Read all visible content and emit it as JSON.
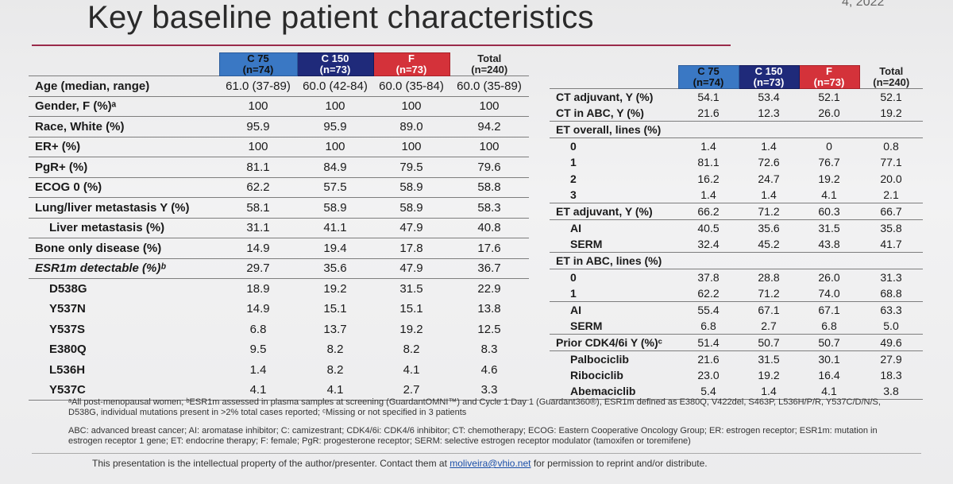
{
  "title": "Key baseline patient characteristics",
  "corner_fragment": "4, 2022",
  "columns": [
    {
      "name": "C 75",
      "n": "(n=74)"
    },
    {
      "name": "C 150",
      "n": "(n=73)"
    },
    {
      "name": "F",
      "n": "(n=73)"
    },
    {
      "name": "Total",
      "n": "(n=240)"
    }
  ],
  "left_rows": [
    {
      "label": "Age (median, range)",
      "values": [
        "61.0 (37-89)",
        "60.0 (42-84)",
        "60.0 (35-84)",
        "60.0 (35-89)"
      ],
      "indent": 0
    },
    {
      "label": "Gender, F (%)ᵃ",
      "values": [
        "100",
        "100",
        "100",
        "100"
      ],
      "indent": 0
    },
    {
      "label": "Race, White (%)",
      "values": [
        "95.9",
        "95.9",
        "89.0",
        "94.2"
      ],
      "indent": 0
    },
    {
      "label": "ER+ (%)",
      "values": [
        "100",
        "100",
        "100",
        "100"
      ],
      "indent": 0
    },
    {
      "label": "PgR+ (%)",
      "values": [
        "81.1",
        "84.9",
        "79.5",
        "79.6"
      ],
      "indent": 0
    },
    {
      "label": "ECOG 0 (%)",
      "values": [
        "62.2",
        "57.5",
        "58.9",
        "58.8"
      ],
      "indent": 0
    },
    {
      "label": "Lung/liver metastasis Y (%)",
      "values": [
        "58.1",
        "58.9",
        "58.9",
        "58.3"
      ],
      "indent": 0
    },
    {
      "label": "Liver metastasis (%)",
      "values": [
        "31.1",
        "41.1",
        "47.9",
        "40.8"
      ],
      "indent": 1
    },
    {
      "label": "Bone only disease (%)",
      "values": [
        "14.9",
        "19.4",
        "17.8",
        "17.6"
      ],
      "indent": 0
    },
    {
      "label": "ESR1m detectable (%)ᵇ",
      "values": [
        "29.7",
        "35.6",
        "47.9",
        "36.7"
      ],
      "indent": 0
    },
    {
      "label": "D538G",
      "values": [
        "18.9",
        "19.2",
        "31.5",
        "22.9"
      ],
      "indent": 1
    },
    {
      "label": "Y537N",
      "values": [
        "14.9",
        "15.1",
        "15.1",
        "13.8"
      ],
      "indent": 1
    },
    {
      "label": "Y537S",
      "values": [
        "6.8",
        "13.7",
        "19.2",
        "12.5"
      ],
      "indent": 1
    },
    {
      "label": "E380Q",
      "values": [
        "9.5",
        "8.2",
        "8.2",
        "8.3"
      ],
      "indent": 1
    },
    {
      "label": "L536H",
      "values": [
        "1.4",
        "8.2",
        "4.1",
        "4.6"
      ],
      "indent": 1
    },
    {
      "label": "Y537C",
      "values": [
        "4.1",
        "4.1",
        "2.7",
        "3.3"
      ],
      "indent": 1
    }
  ],
  "right_rows": [
    {
      "label": "CT adjuvant, Y (%)",
      "values": [
        "54.1",
        "53.4",
        "52.1",
        "52.1"
      ],
      "indent": 0
    },
    {
      "label": "CT in ABC, Y (%)",
      "values": [
        "21.6",
        "12.3",
        "26.0",
        "19.2"
      ],
      "indent": 0
    },
    {
      "label": "ET overall, lines (%)",
      "values": [
        "",
        "",
        "",
        ""
      ],
      "indent": 0
    },
    {
      "label": "0",
      "values": [
        "1.4",
        "1.4",
        "0",
        "0.8"
      ],
      "indent": 1
    },
    {
      "label": "1",
      "values": [
        "81.1",
        "72.6",
        "76.7",
        "77.1"
      ],
      "indent": 1
    },
    {
      "label": "2",
      "values": [
        "16.2",
        "24.7",
        "19.2",
        "20.0"
      ],
      "indent": 1
    },
    {
      "label": "3",
      "values": [
        "1.4",
        "1.4",
        "4.1",
        "2.1"
      ],
      "indent": 1
    },
    {
      "label": "ET adjuvant, Y (%)",
      "values": [
        "66.2",
        "71.2",
        "60.3",
        "66.7"
      ],
      "indent": 0
    },
    {
      "label": "AI",
      "values": [
        "40.5",
        "35.6",
        "31.5",
        "35.8"
      ],
      "indent": 1
    },
    {
      "label": "SERM",
      "values": [
        "32.4",
        "45.2",
        "43.8",
        "41.7"
      ],
      "indent": 1
    },
    {
      "label": "ET in ABC, lines (%)",
      "values": [
        "",
        "",
        "",
        ""
      ],
      "indent": 0
    },
    {
      "label": "0",
      "values": [
        "37.8",
        "28.8",
        "26.0",
        "31.3"
      ],
      "indent": 1
    },
    {
      "label": "1",
      "values": [
        "62.2",
        "71.2",
        "74.0",
        "68.8"
      ],
      "indent": 1
    },
    {
      "label": "AI",
      "values": [
        "55.4",
        "67.1",
        "67.1",
        "63.3"
      ],
      "indent": 1
    },
    {
      "label": "SERM",
      "values": [
        "6.8",
        "2.7",
        "6.8",
        "5.0"
      ],
      "indent": 1
    },
    {
      "label": "Prior CDK4/6i Y (%)ᶜ",
      "values": [
        "51.4",
        "50.7",
        "50.7",
        "49.6"
      ],
      "indent": 0
    },
    {
      "label": "Palbociclib",
      "values": [
        "21.6",
        "31.5",
        "30.1",
        "27.9"
      ],
      "indent": 1
    },
    {
      "label": "Ribociclib",
      "values": [
        "23.0",
        "19.2",
        "16.4",
        "18.3"
      ],
      "indent": 1
    },
    {
      "label": "Abemaciclib",
      "values": [
        "5.4",
        "1.4",
        "4.1",
        "3.8"
      ],
      "indent": 1
    }
  ],
  "footnote1": "ᵃAll post-menopausal women; ᵇESR1m assessed in plasma samples at screening (GuardantOMNI™) and Cycle 1 Day 1 (Guardant360®), ESR1m defined as E380Q, V422del, S463P, L536H/P/R, Y537C/D/N/S, D538G, individual mutations present in >2% total cases reported; ᶜMissing or not specified in 3 patients",
  "footnote2": "ABC: advanced breast cancer; AI: aromatase inhibitor; C: camizestrant; CDK4/6i: CDK4/6 inhibitor; CT: chemotherapy; ECOG: Eastern Cooperative Oncology Group; ER: estrogen receptor; ESR1m: mutation in estrogen receptor 1 gene; ET: endocrine therapy; F: female; PgR: progesterone receptor; SERM: selective estrogen receptor modulator (tamoxifen or toremifene)",
  "ip_notice": {
    "prefix": "This presentation is the intellectual property of the author/presenter. Contact them at ",
    "email": "moliveira@vhio.net",
    "suffix": " for permission to reprint and/or distribute."
  }
}
